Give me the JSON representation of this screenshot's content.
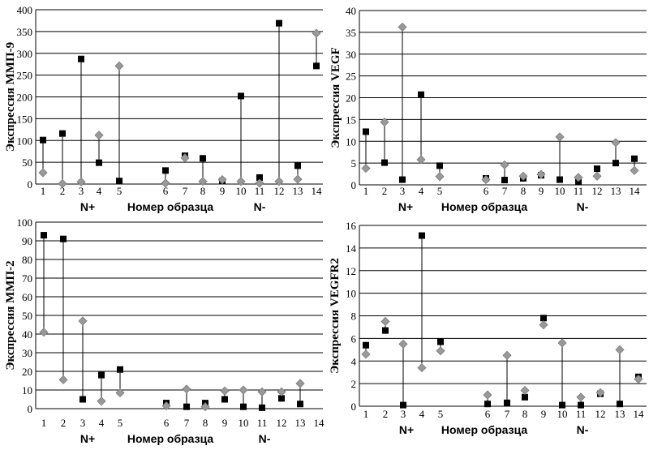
{
  "chart_data": [
    {
      "type": "scatter",
      "ylabel": "Экспрессия ММП-9",
      "xlabel": "Номер образца",
      "group_labels": [
        "N+",
        "N-"
      ],
      "categories": [
        "1",
        "2",
        "3",
        "4",
        "5",
        "6",
        "7",
        "8",
        "9",
        "10",
        "11",
        "12",
        "13",
        "14"
      ],
      "ylim": [
        0,
        400
      ],
      "yticks": [
        "0",
        "50",
        "100",
        "150",
        "200",
        "250",
        "300",
        "350",
        "400"
      ],
      "grid": true,
      "series": [
        {
          "marker": "square",
          "color": "#000000",
          "values": [
            101,
            116,
            287,
            49,
            7,
            31,
            65,
            59,
            7,
            202,
            15,
            369,
            42,
            271
          ]
        },
        {
          "marker": "diamond",
          "color": "#999999",
          "values": [
            26,
            1,
            5,
            112,
            271,
            2,
            60,
            6,
            10,
            6,
            2,
            6,
            11,
            346
          ]
        }
      ]
    },
    {
      "type": "scatter",
      "ylabel": "Экспрессия VEGF",
      "xlabel": "Номер образца",
      "group_labels": [
        "N+",
        "N-"
      ],
      "categories": [
        "1",
        "2",
        "3",
        "4",
        "5",
        "6",
        "7",
        "8",
        "9",
        "10",
        "11",
        "12",
        "13",
        "14"
      ],
      "ylim": [
        0,
        40
      ],
      "yticks": [
        "0",
        "5",
        "10",
        "15",
        "20",
        "25",
        "30",
        "35",
        "40"
      ],
      "grid": true,
      "series": [
        {
          "marker": "square",
          "color": "#000000",
          "values": [
            12.2,
            5.1,
            1.2,
            20.7,
            4.4,
            1.5,
            1.1,
            1.5,
            2.2,
            1.2,
            0.7,
            3.7,
            5.0,
            6.0
          ]
        },
        {
          "marker": "diamond",
          "color": "#999999",
          "values": [
            3.8,
            14.4,
            36.2,
            5.8,
            1.9,
            1.2,
            4.6,
            2.0,
            2.4,
            11.0,
            1.7,
            2.0,
            9.7,
            3.3
          ]
        }
      ]
    },
    {
      "type": "scatter",
      "ylabel": "Экспрессия ММП-2",
      "xlabel": "Номер образца",
      "group_labels": [
        "N+",
        "N-"
      ],
      "categories": [
        "1",
        "2",
        "3",
        "4",
        "5",
        "6",
        "7",
        "8",
        "9",
        "10",
        "11",
        "12",
        "13",
        "14"
      ],
      "ylim": [
        0,
        100
      ],
      "yticks": [
        "0",
        "10",
        "20",
        "30",
        "40",
        "50",
        "60",
        "70",
        "80",
        "90",
        "100"
      ],
      "grid": true,
      "series": [
        {
          "marker": "square",
          "color": "#000000",
          "values": [
            93,
            91,
            5,
            18,
            21,
            3,
            1,
            3,
            5,
            1,
            0.5,
            5.5,
            2.5,
            null
          ]
        },
        {
          "marker": "diamond",
          "color": "#999999",
          "values": [
            41,
            15.5,
            47,
            4,
            8.5,
            1.5,
            10.5,
            1,
            9.5,
            10,
            9,
            9,
            13.5,
            null
          ]
        }
      ]
    },
    {
      "type": "scatter",
      "ylabel": "Экспрессия VEGFR2",
      "xlabel": "Номер образца",
      "group_labels": [
        "N+",
        "N-"
      ],
      "categories": [
        "1",
        "2",
        "3",
        "4",
        "5",
        "6",
        "7",
        "8",
        "9",
        "10",
        "11",
        "12",
        "13",
        "14"
      ],
      "ylim": [
        0,
        16
      ],
      "yticks": [
        "0",
        "2",
        "4",
        "6",
        "8",
        "10",
        "12",
        "14",
        "16"
      ],
      "grid": true,
      "series": [
        {
          "marker": "square",
          "color": "#000000",
          "values": [
            5.4,
            6.7,
            0.1,
            15.1,
            5.7,
            0.2,
            0.3,
            0.8,
            7.8,
            0.1,
            0.1,
            1.1,
            0.2,
            2.6
          ]
        },
        {
          "marker": "diamond",
          "color": "#999999",
          "values": [
            4.6,
            7.5,
            5.5,
            3.4,
            4.9,
            1.0,
            4.5,
            1.4,
            7.2,
            5.6,
            0.8,
            1.2,
            5.0,
            2.4
          ]
        }
      ]
    }
  ]
}
